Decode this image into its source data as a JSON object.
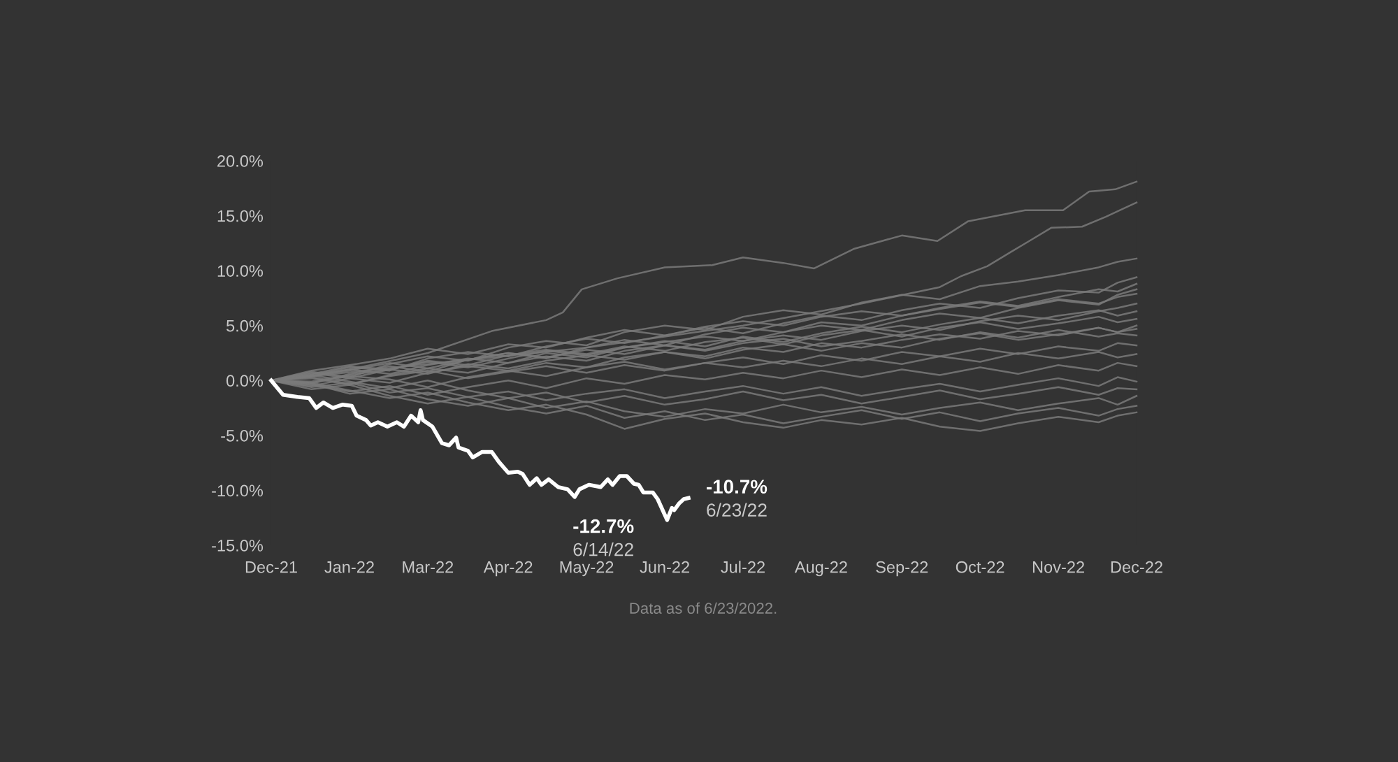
{
  "chart_data": {
    "type": "line",
    "x": [
      "2021-12-29",
      "2022-01-15",
      "2022-01-31",
      "2022-02-17",
      "2022-03-05",
      "2022-03-22",
      "2022-04-08",
      "2022-04-24",
      "2022-05-11",
      "2022-05-27",
      "2022-06-13",
      "2022-06-30",
      "2022-07-16",
      "2022-08-02",
      "2022-08-18",
      "2022-09-04",
      "2022-09-21",
      "2022-10-07",
      "2022-10-24",
      "2022-11-09",
      "2022-11-26",
      "2022-12-13",
      "2022-12-21",
      "2022-12-29"
    ],
    "xlim": [
      "2021-12-29",
      "2022-12-29"
    ],
    "xticks": [
      {
        "value": "2021-12-29",
        "label": "Dec-21"
      },
      {
        "value": "2022-01-31",
        "label": "Jan-22"
      },
      {
        "value": "2022-03-05",
        "label": "Mar-22"
      },
      {
        "value": "2022-04-08",
        "label": "Apr-22"
      },
      {
        "value": "2022-05-11",
        "label": "May-22"
      },
      {
        "value": "2022-06-13",
        "label": "Jun-22"
      },
      {
        "value": "2022-07-16",
        "label": "Jul-22"
      },
      {
        "value": "2022-08-18",
        "label": "Aug-22"
      },
      {
        "value": "2022-09-21",
        "label": "Sep-22"
      },
      {
        "value": "2022-10-24",
        "label": "Oct-22"
      },
      {
        "value": "2022-11-26",
        "label": "Nov-22"
      },
      {
        "value": "2022-12-29",
        "label": "Dec-22"
      }
    ],
    "ylim": [
      -15,
      20
    ],
    "yticks": [
      {
        "value": -15,
        "label": "-15.0%"
      },
      {
        "value": -10,
        "label": "-10.0%"
      },
      {
        "value": -5,
        "label": "-5.0%"
      },
      {
        "value": 0,
        "label": "0.0%"
      },
      {
        "value": 5,
        "label": "5.0%"
      },
      {
        "value": 10,
        "label": "10.0%"
      },
      {
        "value": 15,
        "label": "15.0%"
      },
      {
        "value": 20,
        "label": "20.0%"
      }
    ],
    "grid": false,
    "series": [
      {
        "color": "#7a7a7a",
        "x": [
          "2021-12-29",
          "2022-01-31",
          "2022-03-05",
          "2022-04-01",
          "2022-04-24",
          "2022-05-01",
          "2022-05-09",
          "2022-05-24",
          "2022-06-13",
          "2022-07-03",
          "2022-07-16",
          "2022-08-02",
          "2022-08-15",
          "2022-09-01",
          "2022-09-21",
          "2022-10-06",
          "2022-10-19",
          "2022-11-12",
          "2022-11-28",
          "2022-12-09",
          "2022-12-20",
          "2022-12-29"
        ],
        "values": [
          0,
          1.0,
          2.5,
          4.5,
          5.5,
          6.2,
          8.3,
          9.3,
          10.3,
          10.5,
          11.2,
          10.7,
          10.2,
          12.0,
          13.2,
          12.7,
          14.5,
          15.5,
          15.5,
          17.2,
          17.4,
          18.1
        ]
      },
      {
        "color": "#7a7a7a",
        "x": [
          "2021-12-29",
          "2022-03-05",
          "2022-05-11",
          "2022-07-16",
          "2022-09-04",
          "2022-10-07",
          "2022-10-16",
          "2022-10-27",
          "2022-11-06",
          "2022-11-13",
          "2022-11-23",
          "2022-12-06",
          "2022-12-16",
          "2022-12-22",
          "2022-12-29"
        ],
        "values": [
          0,
          1.5,
          3,
          5,
          7,
          8.5,
          9.5,
          10.4,
          11.7,
          12.6,
          13.9,
          14.0,
          14.9,
          15.5,
          16.2
        ]
      },
      {
        "color": "#7a7a7a",
        "values": [
          0,
          0.8,
          0.3,
          1.5,
          2.2,
          1.8,
          3.0,
          3.6,
          3.2,
          4.4,
          5.0,
          4.6,
          5.8,
          6.4,
          6.0,
          7.1,
          7.8,
          7.4,
          8.6,
          9.0,
          9.6,
          10.3,
          10.8,
          11.1
        ]
      },
      {
        "color": "#7a7a7a",
        "values": [
          0,
          0.5,
          1.2,
          0.9,
          2.0,
          2.6,
          2.2,
          3.1,
          3.8,
          3.4,
          4.1,
          4.8,
          4.3,
          5.2,
          5.9,
          5.5,
          6.4,
          7.0,
          6.6,
          7.5,
          8.2,
          8.0,
          8.9,
          9.4
        ]
      },
      {
        "color": "#7a7a7a",
        "values": [
          0,
          -0.3,
          0.6,
          1.3,
          0.8,
          1.9,
          2.5,
          2.0,
          3.0,
          3.7,
          3.2,
          4.2,
          4.8,
          4.4,
          5.3,
          5.0,
          5.9,
          6.6,
          7.2,
          6.8,
          7.6,
          8.3,
          8.1,
          8.8
        ]
      },
      {
        "color": "#7a7a7a",
        "values": [
          0,
          0.9,
          1.4,
          2.0,
          2.9,
          2.4,
          3.3,
          3.0,
          3.9,
          4.6,
          4.1,
          4.9,
          5.4,
          5.0,
          5.8,
          6.3,
          5.9,
          6.5,
          7.1,
          6.7,
          7.4,
          7.0,
          7.6,
          7.9
        ]
      },
      {
        "color": "#7a7a7a",
        "values": [
          0,
          0.2,
          -0.4,
          0.5,
          1.1,
          0.7,
          1.6,
          2.2,
          1.8,
          2.7,
          3.2,
          2.8,
          3.6,
          4.1,
          3.7,
          4.5,
          5.0,
          4.6,
          5.4,
          5.9,
          5.5,
          6.3,
          6.6,
          7.0
        ]
      },
      {
        "color": "#7a7a7a",
        "values": [
          0,
          0.6,
          1.3,
          1.0,
          1.8,
          1.4,
          2.3,
          2.8,
          2.4,
          3.1,
          2.7,
          3.5,
          3.9,
          3.3,
          4.1,
          4.6,
          4.0,
          4.8,
          5.3,
          4.7,
          5.2,
          5.8,
          5.3,
          5.6
        ]
      },
      {
        "color": "#7a7a7a",
        "values": [
          0,
          -0.5,
          0.2,
          -0.2,
          0.7,
          1.3,
          0.9,
          1.6,
          1.2,
          2.1,
          2.6,
          2.0,
          2.8,
          3.3,
          2.7,
          3.4,
          3.0,
          3.8,
          4.3,
          3.7,
          4.2,
          4.8,
          4.4,
          4.7
        ]
      },
      {
        "color": "#7a7a7a",
        "values": [
          0,
          0.4,
          0.9,
          1.6,
          1.1,
          1.9,
          2.5,
          2.1,
          2.8,
          2.4,
          3.2,
          2.7,
          3.4,
          3.8,
          3.1,
          3.6,
          4.2,
          3.7,
          4.4,
          3.9,
          4.6,
          4.0,
          4.3,
          4.1
        ]
      },
      {
        "color": "#7a7a7a",
        "values": [
          0,
          -0.2,
          0.4,
          0.1,
          -0.6,
          0.3,
          0.9,
          0.4,
          1.2,
          1.7,
          1.0,
          1.6,
          2.1,
          1.5,
          2.3,
          1.8,
          2.6,
          2.2,
          2.9,
          2.4,
          3.1,
          2.7,
          3.4,
          3.2
        ]
      },
      {
        "color": "#7a7a7a",
        "values": [
          0,
          0.3,
          -0.3,
          0.4,
          0.9,
          0.2,
          0.8,
          1.3,
          0.7,
          1.4,
          0.9,
          1.6,
          1.2,
          1.8,
          1.3,
          2.0,
          1.5,
          2.2,
          1.7,
          2.5,
          2.0,
          2.6,
          2.1,
          2.4
        ]
      },
      {
        "color": "#7a7a7a",
        "values": [
          0,
          -0.4,
          -1.0,
          -0.5,
          -1.3,
          -0.6,
          0.0,
          -0.7,
          0.2,
          -0.3,
          0.5,
          0.1,
          0.7,
          0.2,
          0.9,
          0.3,
          1.0,
          0.5,
          1.2,
          0.6,
          1.4,
          0.9,
          1.6,
          1.3
        ]
      },
      {
        "color": "#7a7a7a",
        "values": [
          0,
          -0.6,
          -0.2,
          -1.1,
          -0.7,
          -1.5,
          -1.0,
          -1.8,
          -1.2,
          -0.8,
          -1.6,
          -1.0,
          -0.5,
          -1.2,
          -0.6,
          -1.4,
          -0.8,
          -0.3,
          -1.0,
          -0.4,
          0.2,
          -0.5,
          0.3,
          -0.1
        ]
      },
      {
        "color": "#7a7a7a",
        "values": [
          0,
          0.5,
          -0.1,
          -0.7,
          0.0,
          -0.9,
          -1.6,
          -1.1,
          -2.0,
          -1.4,
          -2.2,
          -1.7,
          -1.0,
          -1.8,
          -1.3,
          -2.1,
          -1.5,
          -0.9,
          -1.7,
          -1.2,
          -0.6,
          -1.3,
          -0.7,
          -0.8
        ]
      },
      {
        "color": "#7a7a7a",
        "values": [
          0,
          -0.3,
          -1.2,
          -0.8,
          -1.7,
          -2.3,
          -1.6,
          -2.5,
          -1.9,
          -2.8,
          -3.3,
          -2.6,
          -3.0,
          -2.2,
          -2.9,
          -2.4,
          -3.1,
          -2.5,
          -2.0,
          -2.7,
          -2.1,
          -1.6,
          -2.2,
          -1.4
        ]
      },
      {
        "color": "#7a7a7a",
        "values": [
          0,
          -0.8,
          -0.4,
          -1.4,
          -2.1,
          -1.5,
          -2.4,
          -3.0,
          -2.3,
          -3.4,
          -2.8,
          -3.6,
          -3.1,
          -3.9,
          -3.3,
          -2.7,
          -3.5,
          -2.9,
          -3.7,
          -3.0,
          -2.5,
          -3.2,
          -2.6,
          -2.3
        ]
      },
      {
        "color": "#7a7a7a",
        "values": [
          0,
          -0.2,
          -0.9,
          -1.6,
          -1.1,
          -2.0,
          -2.7,
          -2.2,
          -3.1,
          -4.4,
          -3.5,
          -3.0,
          -3.8,
          -4.3,
          -3.6,
          -4.0,
          -3.4,
          -4.2,
          -4.6,
          -3.9,
          -3.3,
          -3.8,
          -3.2,
          -2.9
        ]
      },
      {
        "color": "#7a7a7a",
        "values": [
          0,
          0.7,
          0.2,
          1.0,
          1.7,
          1.2,
          2.0,
          2.7,
          2.3,
          3.0,
          3.6,
          3.1,
          4.0,
          3.5,
          4.3,
          4.9,
          4.4,
          5.1,
          5.7,
          5.2,
          5.9,
          6.4,
          5.9,
          6.3
        ]
      },
      {
        "color": "#7a7a7a",
        "values": [
          0,
          0.4,
          1.0,
          0.6,
          1.4,
          2.0,
          1.6,
          2.5,
          2.1,
          3.0,
          3.5,
          4.0,
          3.6,
          4.4,
          5.0,
          4.6,
          5.5,
          6.1,
          5.7,
          6.6,
          7.3,
          6.9,
          7.8,
          8.3
        ]
      },
      {
        "color": "#7a7a7a",
        "values": [
          0,
          -0.1,
          0.5,
          1.0,
          0.6,
          1.5,
          1.1,
          1.8,
          2.3,
          1.9,
          2.6,
          2.2,
          3.0,
          2.6,
          3.4,
          3.0,
          3.7,
          4.2,
          3.8,
          4.5,
          4.1,
          4.8,
          4.4,
          5.0
        ]
      },
      {
        "color": "#ffffff",
        "x": [
          "2021-12-29",
          "2022-01-03",
          "2022-01-09",
          "2022-01-14",
          "2022-01-17",
          "2022-01-20",
          "2022-01-24",
          "2022-01-28",
          "2022-02-01",
          "2022-02-03",
          "2022-02-07",
          "2022-02-09",
          "2022-02-12",
          "2022-02-16",
          "2022-02-20",
          "2022-02-23",
          "2022-02-26",
          "2022-03-01",
          "2022-03-02",
          "2022-03-03",
          "2022-03-07",
          "2022-03-11",
          "2022-03-14",
          "2022-03-17",
          "2022-03-18",
          "2022-03-22",
          "2022-03-24",
          "2022-03-28",
          "2022-04-01",
          "2022-04-04",
          "2022-04-08",
          "2022-04-12",
          "2022-04-14",
          "2022-04-17",
          "2022-04-20",
          "2022-04-22",
          "2022-04-25",
          "2022-04-29",
          "2022-05-03",
          "2022-05-06",
          "2022-05-08",
          "2022-05-12",
          "2022-05-17",
          "2022-05-20",
          "2022-05-22",
          "2022-05-25",
          "2022-05-28",
          "2022-05-31",
          "2022-06-02",
          "2022-06-04",
          "2022-06-08",
          "2022-06-10",
          "2022-06-14",
          "2022-06-16",
          "2022-06-17",
          "2022-06-19",
          "2022-06-21",
          "2022-06-23"
        ],
        "values": [
          0,
          -1.3,
          -1.5,
          -1.6,
          -2.5,
          -2.0,
          -2.5,
          -2.2,
          -2.3,
          -3.2,
          -3.6,
          -4.1,
          -3.8,
          -4.2,
          -3.8,
          -4.2,
          -3.2,
          -3.8,
          -2.7,
          -3.6,
          -4.2,
          -5.7,
          -5.9,
          -5.2,
          -6.1,
          -6.4,
          -7.0,
          -6.5,
          -6.5,
          -7.4,
          -8.4,
          -8.3,
          -8.5,
          -9.5,
          -8.9,
          -9.5,
          -9.0,
          -9.7,
          -9.9,
          -10.6,
          -9.9,
          -9.5,
          -9.7,
          -9.0,
          -9.5,
          -8.7,
          -8.7,
          -9.4,
          -9.5,
          -10.2,
          -10.2,
          -10.8,
          -12.7,
          -11.6,
          -11.8,
          -11.2,
          -10.8,
          -10.7
        ]
      }
    ],
    "annotations": [
      {
        "text": "-12.7%",
        "x": "2022-06-14",
        "y": -12.7
      },
      {
        "text": "6/14/22",
        "x": "2022-06-14",
        "y": -12.7
      },
      {
        "text": "-10.7%",
        "x": "2022-06-23",
        "y": -10.7
      },
      {
        "text": "6/23/22",
        "x": "2022-06-23",
        "y": -10.7
      },
      "Data as of 6/23/2022."
    ]
  }
}
